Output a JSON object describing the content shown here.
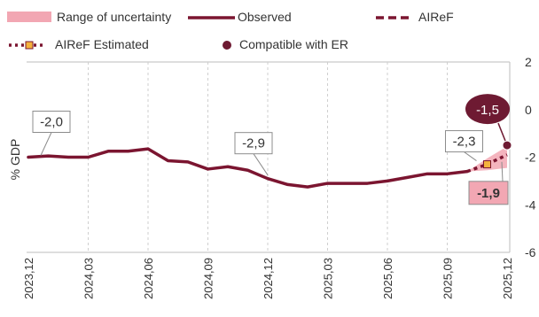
{
  "chart_data": {
    "type": "line",
    "ylabel": "% GDP",
    "ylim": [
      -6,
      2
    ],
    "yticks": [
      2,
      0,
      -2,
      -4,
      -6
    ],
    "xticks": [
      "2023,12",
      "2024,03",
      "2024,06",
      "2024,09",
      "2024,12",
      "2025,03",
      "2025,06",
      "2025,09",
      "2025,12"
    ],
    "grid": "vertical dashed",
    "legend": {
      "placement": "top",
      "items": [
        {
          "key": "range",
          "label": "Range of uncertainty",
          "color": "#f2a7b3"
        },
        {
          "key": "observed",
          "label": "Observed",
          "color": "#7b1530"
        },
        {
          "key": "airef",
          "label": "AIReF",
          "color": "#7b1530"
        },
        {
          "key": "estimated",
          "label": "AIReF Estimated",
          "color": "#f5b23c"
        },
        {
          "key": "er",
          "label": "Compatible with ER",
          "color": "#6e1a32"
        }
      ]
    },
    "series": [
      {
        "key": "observed",
        "name": "Observed",
        "x": [
          "2023,12",
          "2024,01",
          "2024,02",
          "2024,03",
          "2024,04",
          "2024,05",
          "2024,06",
          "2024,07",
          "2024,08",
          "2024,09",
          "2024,10",
          "2024,11",
          "2024,12",
          "2025,01",
          "2025,02",
          "2025,03",
          "2025,04",
          "2025,05",
          "2025,06",
          "2025,07",
          "2025,08",
          "2025,09",
          "2025,10"
        ],
        "values": [
          -2.0,
          -1.95,
          -2.0,
          -2.0,
          -1.75,
          -1.75,
          -1.65,
          -2.15,
          -2.2,
          -2.5,
          -2.4,
          -2.55,
          -2.9,
          -3.15,
          -3.25,
          -3.1,
          -3.1,
          -3.1,
          -3.0,
          -2.85,
          -2.7,
          -2.7,
          -2.6
        ]
      },
      {
        "key": "airef",
        "name": "AIReF",
        "x": [
          "2025,10",
          "2025,11",
          "2025,12"
        ],
        "values": [
          -2.6,
          -2.3,
          -1.9
        ]
      },
      {
        "key": "estimated",
        "name": "AIReF Estimated",
        "x": [
          "2025,11"
        ],
        "values": [
          -2.3
        ]
      },
      {
        "key": "er",
        "name": "Compatible with ER",
        "x": [
          "2025,12"
        ],
        "values": [
          -1.5
        ]
      }
    ],
    "range_of_uncertainty": {
      "x": [
        "2025,10",
        "2025,11",
        "2025,12"
      ],
      "lower": [
        -2.6,
        -2.55,
        -2.45
      ],
      "upper": [
        -2.6,
        -2.05,
        -1.55
      ]
    },
    "annotations": [
      {
        "text": "-2,0",
        "x": "2023,12",
        "value": -2.0,
        "style": "box"
      },
      {
        "text": "-2,9",
        "x": "2024,12",
        "value": -2.9,
        "style": "box"
      },
      {
        "text": "-2,3",
        "x": "2025,11",
        "value": -2.3,
        "style": "box"
      },
      {
        "text": "-1,5",
        "x": "2025,12",
        "value": -1.5,
        "style": "ellipse"
      },
      {
        "text": "-1,9",
        "x": "2025,12",
        "value": -1.9,
        "style": "pink-box"
      }
    ]
  }
}
